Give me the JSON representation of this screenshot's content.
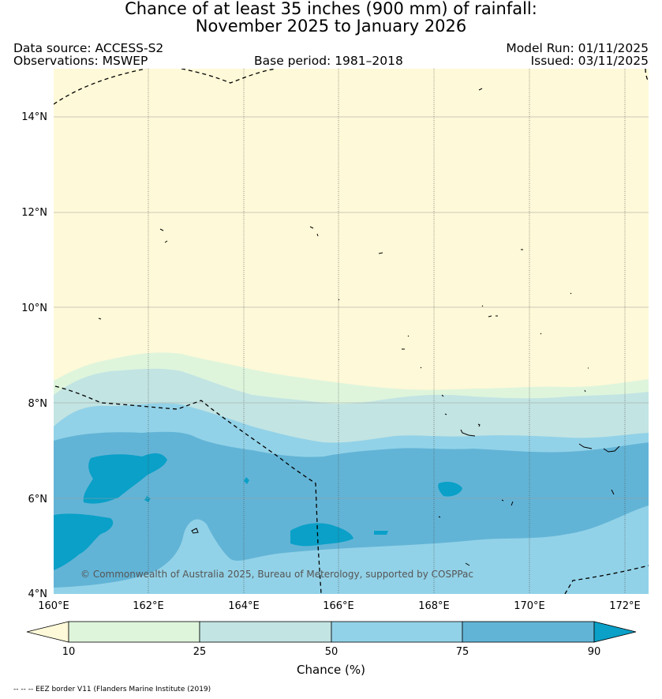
{
  "title": {
    "line1": "Chance of at least 35 inches (900  mm) of rainfall:",
    "line2": "November 2025 to January 2026"
  },
  "meta": {
    "data_source": "Data source: ACCESS-S2",
    "observations": "Observations: MSWEP",
    "base_period": "Base period: 1981–2018",
    "model_run": "Model Run: 01/11/2025",
    "issued": "Issued: 03/11/2025"
  },
  "map": {
    "lat_labels": [
      "14°N",
      "12°N",
      "10°N",
      "8°N",
      "6°N",
      "4°N"
    ],
    "lon_labels": [
      "160°E",
      "162°E",
      "164°E",
      "166°E",
      "168°E",
      "170°E",
      "172°E"
    ],
    "copyright": "© Commonwealth of Australia 2025, Bureau of Meterology, supported by COSPPac"
  },
  "colorbar": {
    "ticks": [
      "10",
      "25",
      "50",
      "75",
      "90"
    ],
    "title": "Chance (%)",
    "colors": [
      "#fef9d8",
      "#def5dc",
      "#c2e4e3",
      "#92d2e8",
      "#62b4d6",
      "#0aa0c8"
    ]
  },
  "footnote": "-- -- -- EEZ border V11 (Flanders Marine Institute (2019)"
}
